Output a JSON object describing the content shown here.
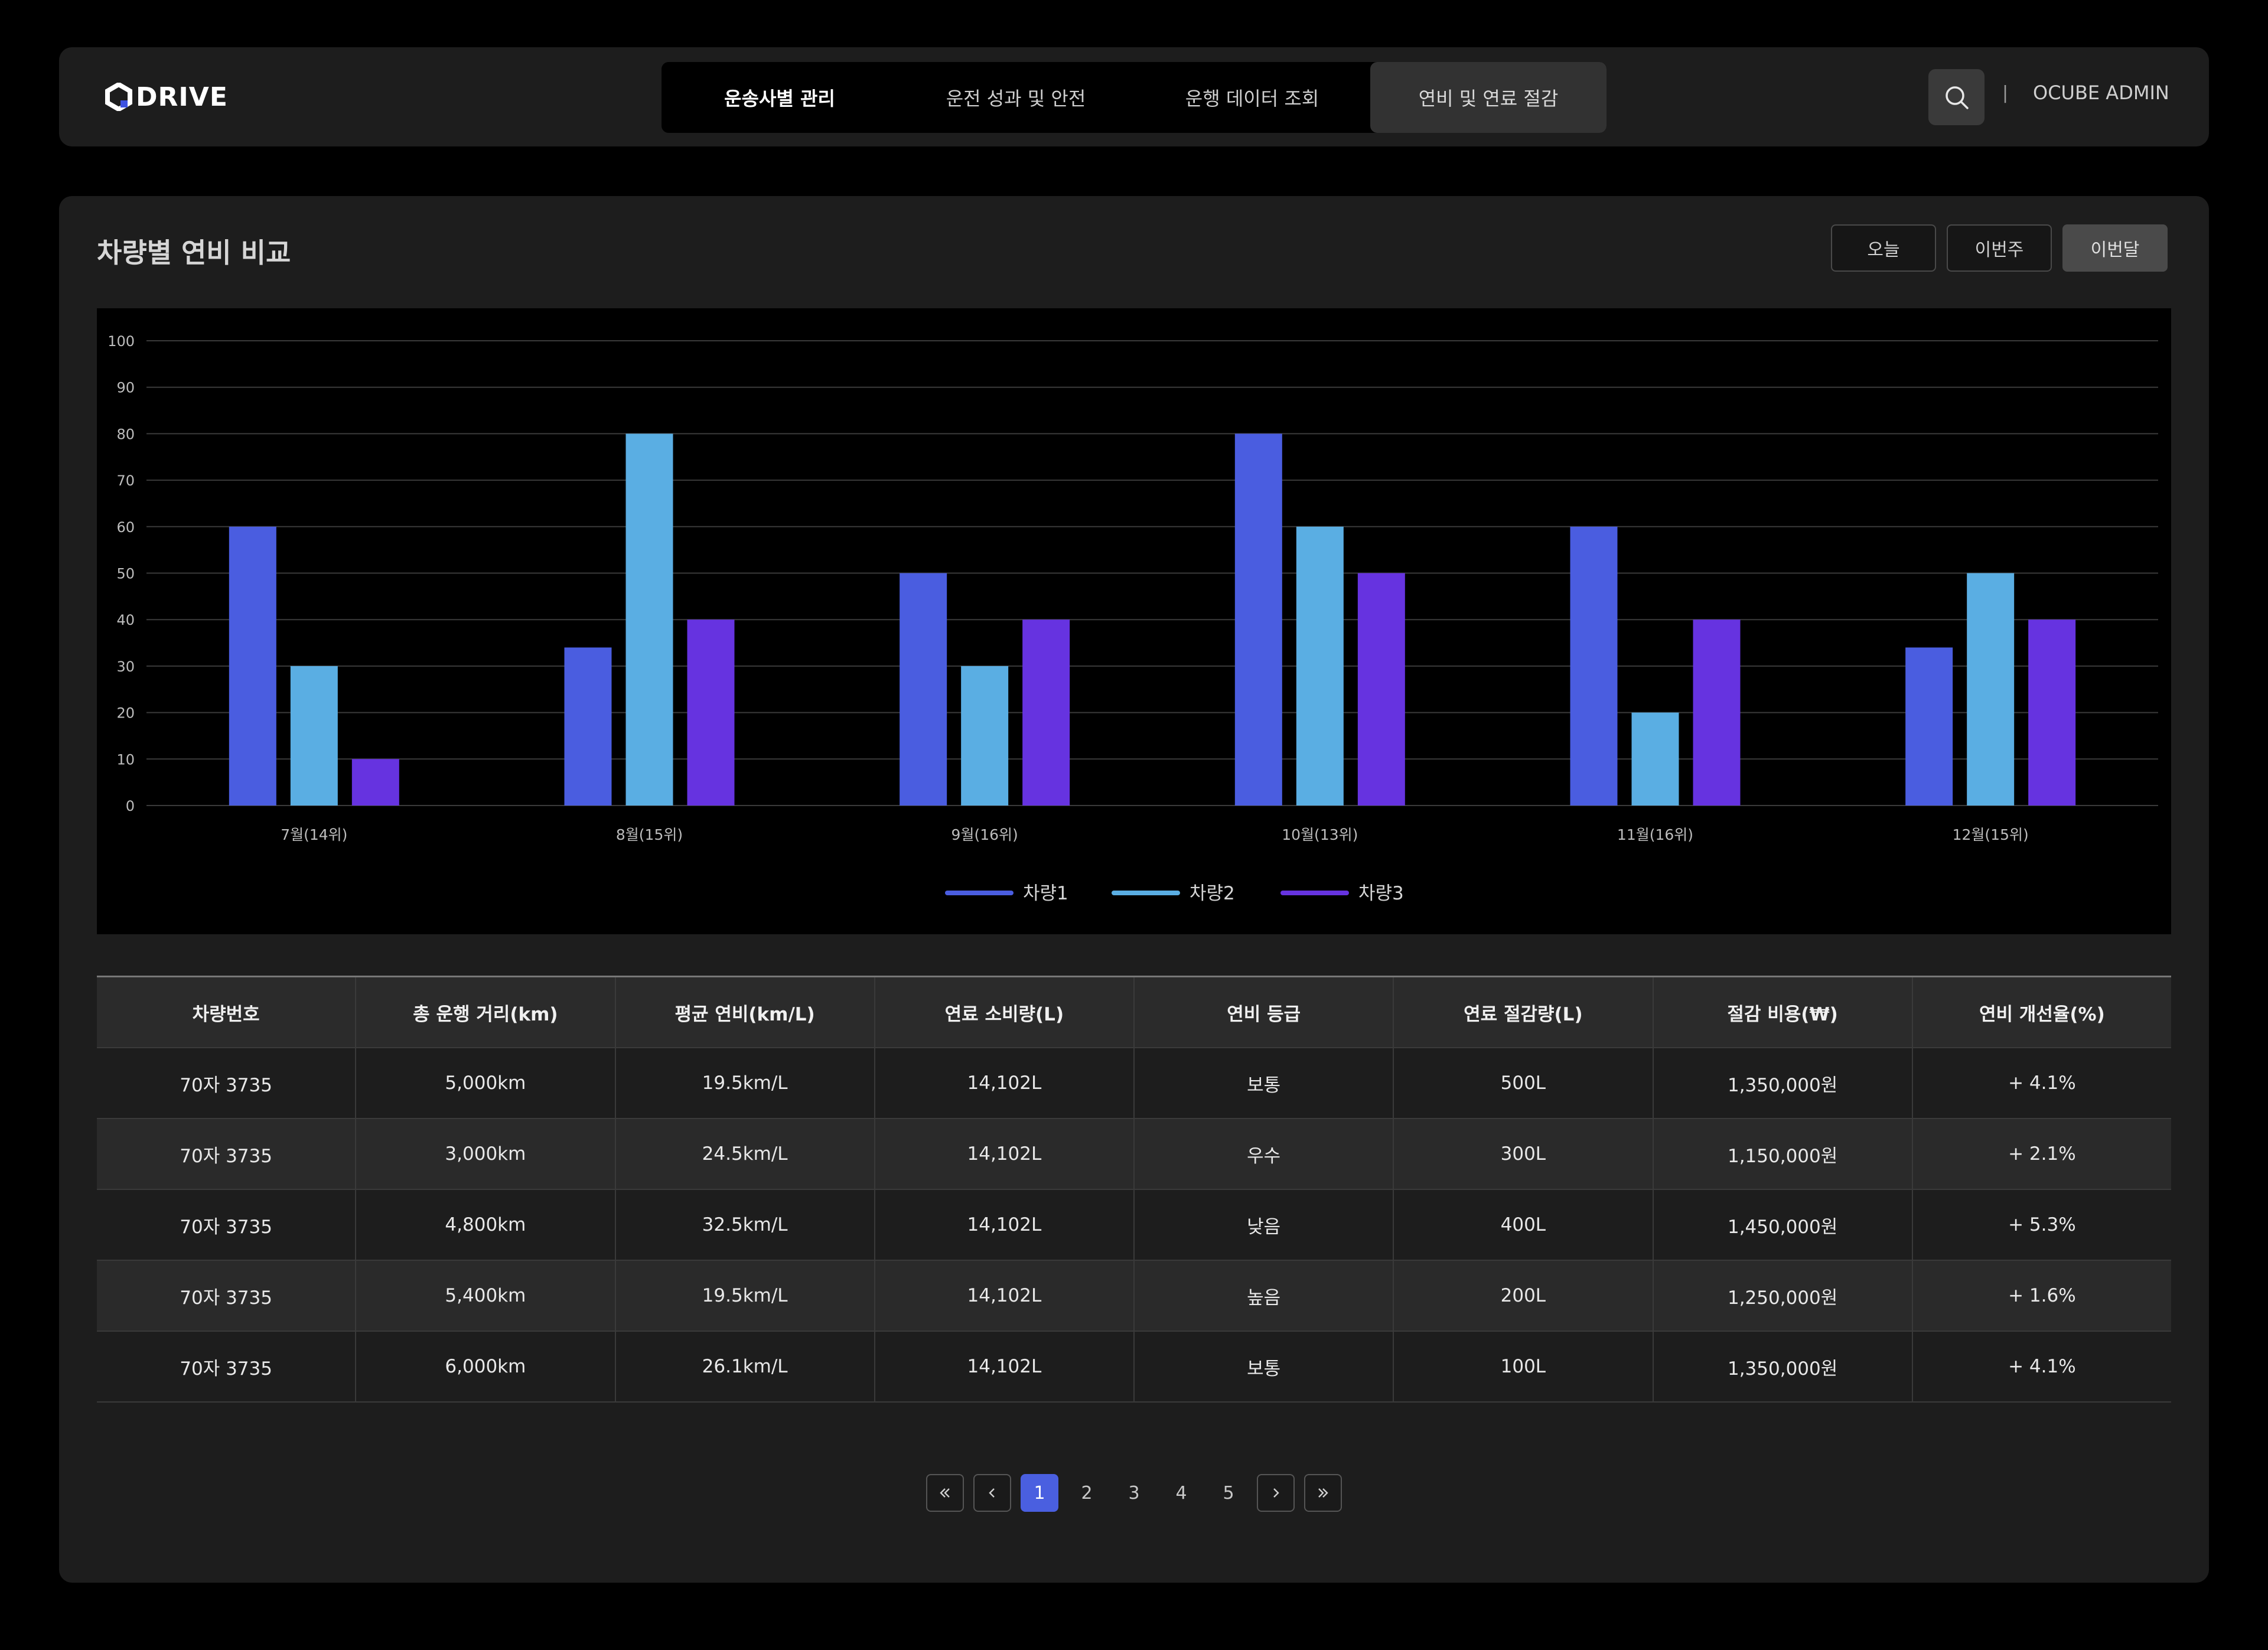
{
  "header": {
    "logo_text": "DRIVE",
    "nav": [
      {
        "label": "운송사별 관리"
      },
      {
        "label": "운전 성과 및 안전"
      },
      {
        "label": "운행 데이터 조회"
      },
      {
        "label": "연비 및 연료 절감"
      }
    ],
    "separator": "|",
    "admin_label": "OCUBE ADMIN"
  },
  "panel": {
    "title": "차량별 연비 비교",
    "period_buttons": [
      {
        "label": "오늘"
      },
      {
        "label": "이번주"
      },
      {
        "label": "이번달"
      }
    ]
  },
  "chart_data": {
    "type": "bar",
    "categories": [
      "7월(14위)",
      "8월(15위)",
      "9월(16위)",
      "10월(13위)",
      "11월(16위)",
      "12월(15위)"
    ],
    "series": [
      {
        "name": "차량1",
        "values": [
          60,
          34,
          50,
          80,
          60,
          34
        ],
        "color": "#4a5de0"
      },
      {
        "name": "차량2",
        "values": [
          30,
          80,
          30,
          60,
          20,
          50
        ],
        "color": "#5aaee3"
      },
      {
        "name": "차량3",
        "values": [
          10,
          40,
          40,
          50,
          40,
          40
        ],
        "color": "#6633e0"
      }
    ],
    "ylim": [
      0,
      100
    ],
    "yticks": [
      0,
      10,
      20,
      30,
      40,
      50,
      60,
      70,
      80,
      90,
      100
    ],
    "grid": true,
    "legend": "bottom-center",
    "title": "",
    "xlabel": "",
    "ylabel": ""
  },
  "table": {
    "headers": [
      "차량번호",
      "총 운행 거리(km)",
      "평균 연비(km/L)",
      "연료 소비량(L)",
      "연비 등급",
      "연료 절감량(L)",
      "절감 비용(₩)",
      "연비 개선율(%)"
    ],
    "rows": [
      [
        "70자 3735",
        "5,000km",
        "19.5km/L",
        "14,102L",
        "보통",
        "500L",
        "1,350,000원",
        "+ 4.1%"
      ],
      [
        "70자 3735",
        "3,000km",
        "24.5km/L",
        "14,102L",
        "우수",
        "300L",
        "1,150,000원",
        "+ 2.1%"
      ],
      [
        "70자 3735",
        "4,800km",
        "32.5km/L",
        "14,102L",
        "낮음",
        "400L",
        "1,450,000원",
        "+ 5.3%"
      ],
      [
        "70자 3735",
        "5,400km",
        "19.5km/L",
        "14,102L",
        "높음",
        "200L",
        "1,250,000원",
        "+ 1.6%"
      ],
      [
        "70자 3735",
        "6,000km",
        "26.1km/L",
        "14,102L",
        "보통",
        "100L",
        "1,350,000원",
        "+ 4.1%"
      ]
    ]
  },
  "pagination": {
    "pages": [
      "1",
      "2",
      "3",
      "4",
      "5"
    ],
    "current": "1"
  },
  "icons": {
    "search": "search-icon",
    "first": "double-chevron-left-icon",
    "prev": "chevron-left-icon",
    "next": "chevron-right-icon",
    "last": "double-chevron-right-icon"
  }
}
